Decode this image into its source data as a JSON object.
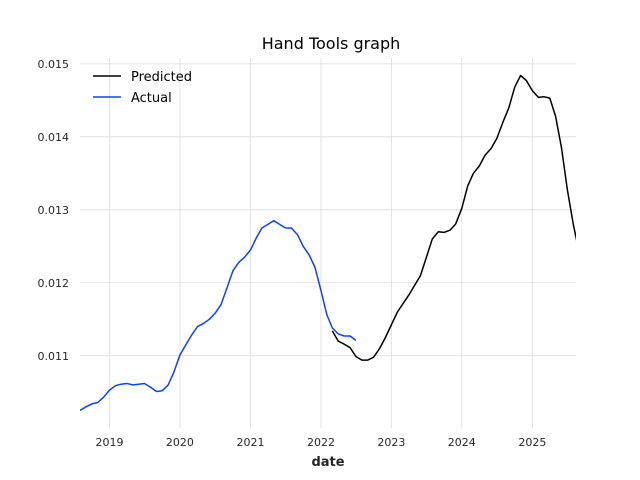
{
  "chart_data": {
    "type": "line",
    "title": "Hand Tools graph",
    "xlabel": "date",
    "ylabel": "",
    "xlim": [
      "2018-08-01",
      "2025-08-15"
    ],
    "ylim": [
      0.01001,
      0.01508
    ],
    "grid": true,
    "legend_position": "top-left",
    "x_ticks": [
      "2019",
      "2020",
      "2021",
      "2022",
      "2023",
      "2024",
      "2025"
    ],
    "y_ticks": [
      "0.011",
      "0.012",
      "0.013",
      "0.014",
      "0.015"
    ],
    "series": [
      {
        "name": "Predicted",
        "color": "#000000",
        "points": [
          [
            "2022-03-01",
            0.01134
          ],
          [
            "2022-04-01",
            0.0112
          ],
          [
            "2022-05-01",
            0.01116
          ],
          [
            "2022-06-01",
            0.01111
          ],
          [
            "2022-07-01",
            0.01099
          ],
          [
            "2022-08-01",
            0.01094
          ],
          [
            "2022-09-01",
            0.01094
          ],
          [
            "2022-10-01",
            0.01098
          ],
          [
            "2022-11-01",
            0.0111
          ],
          [
            "2022-12-01",
            0.01125
          ],
          [
            "2023-02-01",
            0.0116
          ],
          [
            "2023-04-01",
            0.01183
          ],
          [
            "2023-06-01",
            0.0121
          ],
          [
            "2023-08-01",
            0.0126
          ],
          [
            "2023-09-01",
            0.0127
          ],
          [
            "2023-10-01",
            0.01269
          ],
          [
            "2023-11-01",
            0.01272
          ],
          [
            "2023-12-01",
            0.01281
          ],
          [
            "2024-01-01",
            0.01302
          ],
          [
            "2024-02-01",
            0.01333
          ],
          [
            "2024-03-01",
            0.0135
          ],
          [
            "2024-04-01",
            0.0136
          ],
          [
            "2024-05-01",
            0.01375
          ],
          [
            "2024-06-01",
            0.01384
          ],
          [
            "2024-07-01",
            0.01398
          ],
          [
            "2024-08-01",
            0.0142
          ],
          [
            "2024-09-01",
            0.0144
          ],
          [
            "2024-10-01",
            0.01468
          ],
          [
            "2024-11-01",
            0.01484
          ],
          [
            "2024-12-01",
            0.01477
          ],
          [
            "2025-01-01",
            0.01463
          ],
          [
            "2025-02-01",
            0.01454
          ],
          [
            "2025-03-01",
            0.01455
          ],
          [
            "2025-04-01",
            0.01453
          ],
          [
            "2025-05-01",
            0.01428
          ],
          [
            "2025-06-01",
            0.01385
          ],
          [
            "2025-07-01",
            0.01328
          ],
          [
            "2025-08-01",
            0.0128
          ],
          [
            "2025-09-01",
            0.01241
          ]
        ]
      },
      {
        "name": "Actual",
        "color": "#0b43f5",
        "points": [
          [
            "2018-08-01",
            0.01025
          ],
          [
            "2018-09-01",
            0.0103
          ],
          [
            "2018-10-01",
            0.01034
          ],
          [
            "2018-11-01",
            0.01036
          ],
          [
            "2018-12-01",
            0.01043
          ],
          [
            "2019-01-01",
            0.01053
          ],
          [
            "2019-02-01",
            0.01059
          ],
          [
            "2019-03-01",
            0.01061
          ],
          [
            "2019-04-01",
            0.01062
          ],
          [
            "2019-05-01",
            0.0106
          ],
          [
            "2019-06-01",
            0.01061
          ],
          [
            "2019-07-01",
            0.01062
          ],
          [
            "2019-08-01",
            0.01057
          ],
          [
            "2019-09-01",
            0.01051
          ],
          [
            "2019-10-01",
            0.01052
          ],
          [
            "2019-11-01",
            0.0106
          ],
          [
            "2019-12-01",
            0.01078
          ],
          [
            "2020-01-01",
            0.01101
          ],
          [
            "2020-02-01",
            0.01115
          ],
          [
            "2020-03-01",
            0.01128
          ],
          [
            "2020-04-01",
            0.0114
          ],
          [
            "2020-05-01",
            0.01144
          ],
          [
            "2020-06-01",
            0.0115
          ],
          [
            "2020-07-01",
            0.01158
          ],
          [
            "2020-08-01",
            0.0117
          ],
          [
            "2020-09-01",
            0.01193
          ],
          [
            "2020-10-01",
            0.01216
          ],
          [
            "2020-11-01",
            0.01228
          ],
          [
            "2020-12-01",
            0.01235
          ],
          [
            "2021-01-01",
            0.01245
          ],
          [
            "2021-02-01",
            0.01262
          ],
          [
            "2021-03-01",
            0.01275
          ],
          [
            "2021-04-01",
            0.0128
          ],
          [
            "2021-05-01",
            0.01285
          ],
          [
            "2021-06-01",
            0.0128
          ],
          [
            "2021-07-01",
            0.01275
          ],
          [
            "2021-08-01",
            0.01275
          ],
          [
            "2021-09-01",
            0.01266
          ],
          [
            "2021-10-01",
            0.0125
          ],
          [
            "2021-11-01",
            0.01238
          ],
          [
            "2021-12-01",
            0.01221
          ],
          [
            "2022-01-01",
            0.01189
          ],
          [
            "2022-02-01",
            0.01156
          ],
          [
            "2022-03-01",
            0.01138
          ],
          [
            "2022-04-01",
            0.0113
          ],
          [
            "2022-05-01",
            0.01127
          ],
          [
            "2022-06-01",
            0.01127
          ],
          [
            "2022-07-01",
            0.01121
          ]
        ]
      }
    ]
  }
}
